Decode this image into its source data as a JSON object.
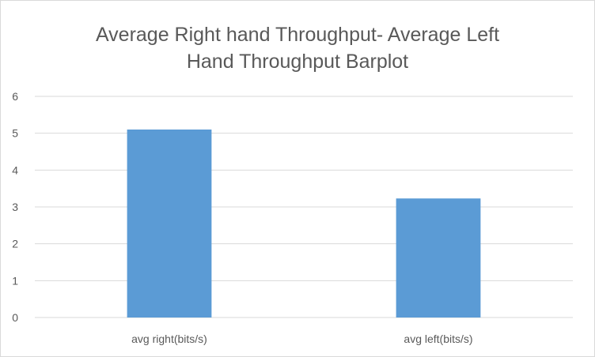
{
  "chart_data": {
    "type": "bar",
    "title_lines": [
      "Average Right hand Throughput- Average Left",
      "Hand Throughput Barplot"
    ],
    "categories": [
      "avg right(bits/s)",
      "avg left(bits/s)"
    ],
    "values": [
      5.1,
      3.23
    ],
    "ylim": [
      0,
      6
    ],
    "yticks": [
      "0",
      "1",
      "2",
      "3",
      "4",
      "5",
      "6"
    ],
    "xlabel": "",
    "ylabel": "",
    "grid": true,
    "legend": "none",
    "colors": {
      "bar": "#5b9bd5",
      "grid": "#d9d9d9",
      "text": "#595959"
    }
  }
}
